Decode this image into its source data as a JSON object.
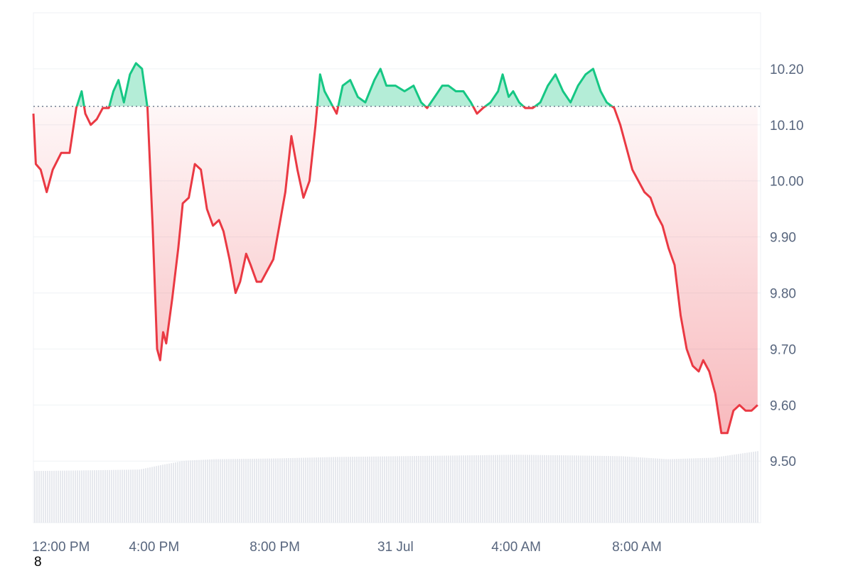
{
  "chart_data": {
    "type": "line",
    "baseline": 10.133,
    "ylim": [
      9.39,
      10.3
    ],
    "y_ticks": [
      "10.20",
      "10.10",
      "10.00",
      "9.90",
      "9.80",
      "9.70",
      "9.60",
      "9.50"
    ],
    "y_tick_values": [
      10.2,
      10.1,
      10.0,
      9.9,
      9.8,
      9.7,
      9.6,
      9.5
    ],
    "x_ticks": [
      "12:00 PM",
      "4:00 PM",
      "8:00 PM",
      "31 Jul",
      "4:00 AM",
      "8:00 AM"
    ],
    "x_tick_hours": [
      12,
      16,
      20,
      24,
      28,
      32
    ],
    "x_range_hours": [
      12,
      36.1
    ],
    "colors": {
      "above": "#16c784",
      "below": "#ea3943",
      "grid": "#eff2f5",
      "volume": "#e7e9ee"
    },
    "series": [
      {
        "points": [
          [
            12.0,
            10.12
          ],
          [
            12.08,
            10.03
          ],
          [
            12.24,
            10.02
          ],
          [
            12.44,
            9.98
          ],
          [
            12.64,
            10.02
          ],
          [
            12.92,
            10.05
          ],
          [
            13.2,
            10.05
          ],
          [
            13.42,
            10.13
          ],
          [
            13.6,
            10.16
          ],
          [
            13.72,
            10.12
          ],
          [
            13.9,
            10.1
          ],
          [
            14.1,
            10.11
          ],
          [
            14.3,
            10.13
          ],
          [
            14.5,
            10.13
          ],
          [
            14.65,
            10.16
          ],
          [
            14.82,
            10.18
          ],
          [
            15.0,
            10.14
          ],
          [
            15.2,
            10.19
          ],
          [
            15.4,
            10.21
          ],
          [
            15.6,
            10.2
          ],
          [
            15.78,
            10.13
          ],
          [
            15.95,
            9.92
          ],
          [
            16.1,
            9.7
          ],
          [
            16.2,
            9.68
          ],
          [
            16.3,
            9.73
          ],
          [
            16.4,
            9.71
          ],
          [
            16.6,
            9.79
          ],
          [
            16.8,
            9.88
          ],
          [
            16.95,
            9.96
          ],
          [
            17.15,
            9.97
          ],
          [
            17.35,
            10.03
          ],
          [
            17.55,
            10.02
          ],
          [
            17.75,
            9.95
          ],
          [
            17.95,
            9.92
          ],
          [
            18.15,
            9.93
          ],
          [
            18.3,
            9.91
          ],
          [
            18.5,
            9.86
          ],
          [
            18.7,
            9.8
          ],
          [
            18.85,
            9.82
          ],
          [
            19.05,
            9.87
          ],
          [
            19.2,
            9.85
          ],
          [
            19.4,
            9.82
          ],
          [
            19.55,
            9.82
          ],
          [
            19.75,
            9.84
          ],
          [
            19.95,
            9.86
          ],
          [
            20.15,
            9.92
          ],
          [
            20.35,
            9.98
          ],
          [
            20.55,
            10.08
          ],
          [
            20.75,
            10.02
          ],
          [
            20.95,
            9.97
          ],
          [
            21.15,
            10.0
          ],
          [
            21.35,
            10.1
          ],
          [
            21.5,
            10.19
          ],
          [
            21.65,
            10.16
          ],
          [
            21.85,
            10.14
          ],
          [
            22.05,
            10.12
          ],
          [
            22.25,
            10.17
          ],
          [
            22.5,
            10.18
          ],
          [
            22.75,
            10.15
          ],
          [
            23.0,
            10.14
          ],
          [
            23.3,
            10.18
          ],
          [
            23.5,
            10.2
          ],
          [
            23.7,
            10.17
          ],
          [
            24.0,
            10.17
          ],
          [
            24.3,
            10.16
          ],
          [
            24.6,
            10.17
          ],
          [
            24.85,
            10.14
          ],
          [
            25.05,
            10.13
          ],
          [
            25.3,
            10.15
          ],
          [
            25.55,
            10.17
          ],
          [
            25.75,
            10.17
          ],
          [
            26.0,
            10.16
          ],
          [
            26.25,
            10.16
          ],
          [
            26.5,
            10.14
          ],
          [
            26.7,
            10.12
          ],
          [
            26.9,
            10.13
          ],
          [
            27.15,
            10.14
          ],
          [
            27.4,
            10.16
          ],
          [
            27.55,
            10.19
          ],
          [
            27.75,
            10.15
          ],
          [
            27.9,
            10.16
          ],
          [
            28.1,
            10.14
          ],
          [
            28.3,
            10.13
          ],
          [
            28.55,
            10.13
          ],
          [
            28.8,
            10.14
          ],
          [
            29.05,
            10.17
          ],
          [
            29.3,
            10.19
          ],
          [
            29.55,
            10.16
          ],
          [
            29.8,
            10.14
          ],
          [
            30.05,
            10.17
          ],
          [
            30.3,
            10.19
          ],
          [
            30.55,
            10.2
          ],
          [
            30.8,
            10.16
          ],
          [
            31.0,
            10.14
          ],
          [
            31.25,
            10.13
          ],
          [
            31.45,
            10.1
          ],
          [
            31.65,
            10.06
          ],
          [
            31.85,
            10.02
          ],
          [
            32.05,
            10.0
          ],
          [
            32.25,
            9.98
          ],
          [
            32.45,
            9.97
          ],
          [
            32.65,
            9.94
          ],
          [
            32.85,
            9.92
          ],
          [
            33.05,
            9.88
          ],
          [
            33.25,
            9.85
          ],
          [
            33.45,
            9.76
          ],
          [
            33.65,
            9.7
          ],
          [
            33.85,
            9.67
          ],
          [
            34.05,
            9.66
          ],
          [
            34.2,
            9.68
          ],
          [
            34.4,
            9.66
          ],
          [
            34.6,
            9.62
          ],
          [
            34.8,
            9.55
          ],
          [
            35.0,
            9.55
          ],
          [
            35.2,
            9.59
          ],
          [
            35.4,
            9.6
          ],
          [
            35.6,
            9.59
          ],
          [
            35.8,
            9.59
          ],
          [
            36.0,
            9.6
          ]
        ]
      }
    ],
    "volume": [
      [
        12,
        0.7
      ],
      [
        14,
        0.71
      ],
      [
        15.5,
        0.72
      ],
      [
        16.2,
        0.78
      ],
      [
        17,
        0.84
      ],
      [
        18,
        0.86
      ],
      [
        20,
        0.87
      ],
      [
        22,
        0.89
      ],
      [
        24,
        0.9
      ],
      [
        26,
        0.91
      ],
      [
        28,
        0.92
      ],
      [
        30,
        0.91
      ],
      [
        31.5,
        0.9
      ],
      [
        33,
        0.86
      ],
      [
        34.5,
        0.88
      ],
      [
        35.5,
        0.94
      ],
      [
        36,
        0.97
      ]
    ]
  },
  "footer": {
    "stray_label": "8"
  }
}
